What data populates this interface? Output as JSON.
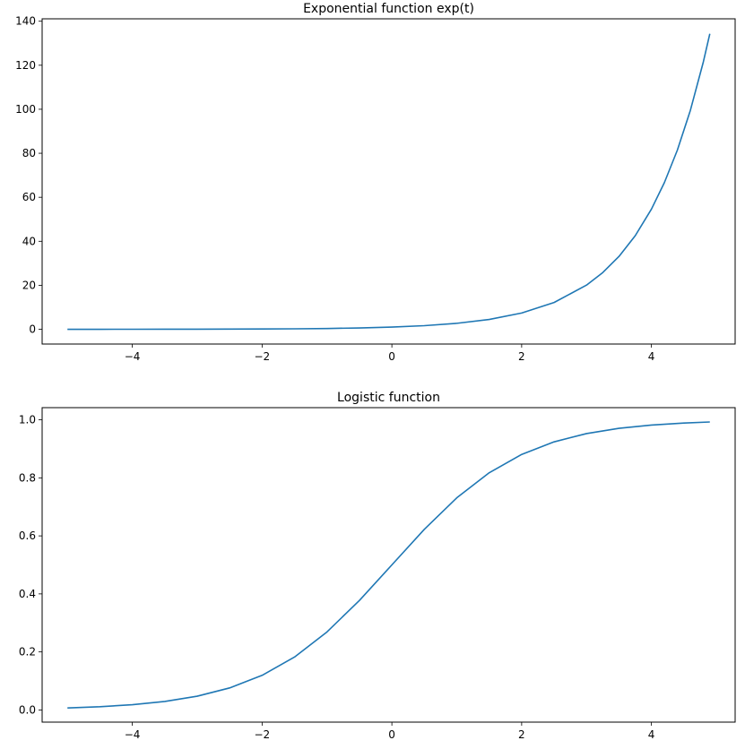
{
  "chart_data": [
    {
      "type": "line",
      "title": "Exponential function exp(t)",
      "xlabel": "",
      "ylabel": "",
      "xlim": [
        -5.39,
        5.29
      ],
      "ylim": [
        -6.7,
        141.1
      ],
      "xticks": [
        -4,
        -2,
        0,
        2,
        4
      ],
      "xtick_labels": [
        "−4",
        "−2",
        "0",
        "2",
        "4"
      ],
      "yticks": [
        0,
        20,
        40,
        60,
        80,
        100,
        120,
        140
      ],
      "ytick_labels": [
        "0",
        "20",
        "40",
        "60",
        "80",
        "100",
        "120",
        "140"
      ],
      "grid": false,
      "color": "#1f77b4",
      "series": [
        {
          "x": [
            -5.0,
            -4.5,
            -4.0,
            -3.5,
            -3.0,
            -2.5,
            -2.0,
            -1.5,
            -1.0,
            -0.5,
            0.0,
            0.5,
            1.0,
            1.5,
            2.0,
            2.5,
            3.0,
            3.25,
            3.5,
            3.75,
            4.0,
            4.2,
            4.4,
            4.6,
            4.8,
            4.9
          ],
          "y": [
            0.007,
            0.011,
            0.018,
            0.03,
            0.05,
            0.082,
            0.135,
            0.223,
            0.368,
            0.607,
            1.0,
            1.649,
            2.718,
            4.482,
            7.389,
            12.18,
            20.09,
            25.79,
            33.12,
            42.52,
            54.6,
            66.69,
            81.45,
            99.48,
            121.51,
            134.29
          ]
        }
      ]
    },
    {
      "type": "line",
      "title": "Logistic function",
      "xlabel": "",
      "ylabel": "",
      "xlim": [
        -5.39,
        5.29
      ],
      "ylim": [
        -0.042,
        1.042
      ],
      "xticks": [
        -4,
        -2,
        0,
        2,
        4
      ],
      "xtick_labels": [
        "−4",
        "−2",
        "0",
        "2",
        "4"
      ],
      "yticks": [
        0.0,
        0.2,
        0.4,
        0.6,
        0.8,
        1.0
      ],
      "ytick_labels": [
        "0.0",
        "0.2",
        "0.4",
        "0.6",
        "0.8",
        "1.0"
      ],
      "grid": false,
      "color": "#1f77b4",
      "series": [
        {
          "x": [
            -5.0,
            -4.5,
            -4.0,
            -3.5,
            -3.0,
            -2.5,
            -2.0,
            -1.5,
            -1.0,
            -0.5,
            0.0,
            0.5,
            1.0,
            1.5,
            2.0,
            2.5,
            3.0,
            3.5,
            4.0,
            4.5,
            4.9
          ],
          "y": [
            0.0067,
            0.011,
            0.018,
            0.0293,
            0.0474,
            0.0759,
            0.1192,
            0.1824,
            0.2689,
            0.3775,
            0.5,
            0.6225,
            0.7311,
            0.8176,
            0.8808,
            0.9241,
            0.9526,
            0.9707,
            0.982,
            0.989,
            0.9926
          ]
        }
      ]
    }
  ]
}
